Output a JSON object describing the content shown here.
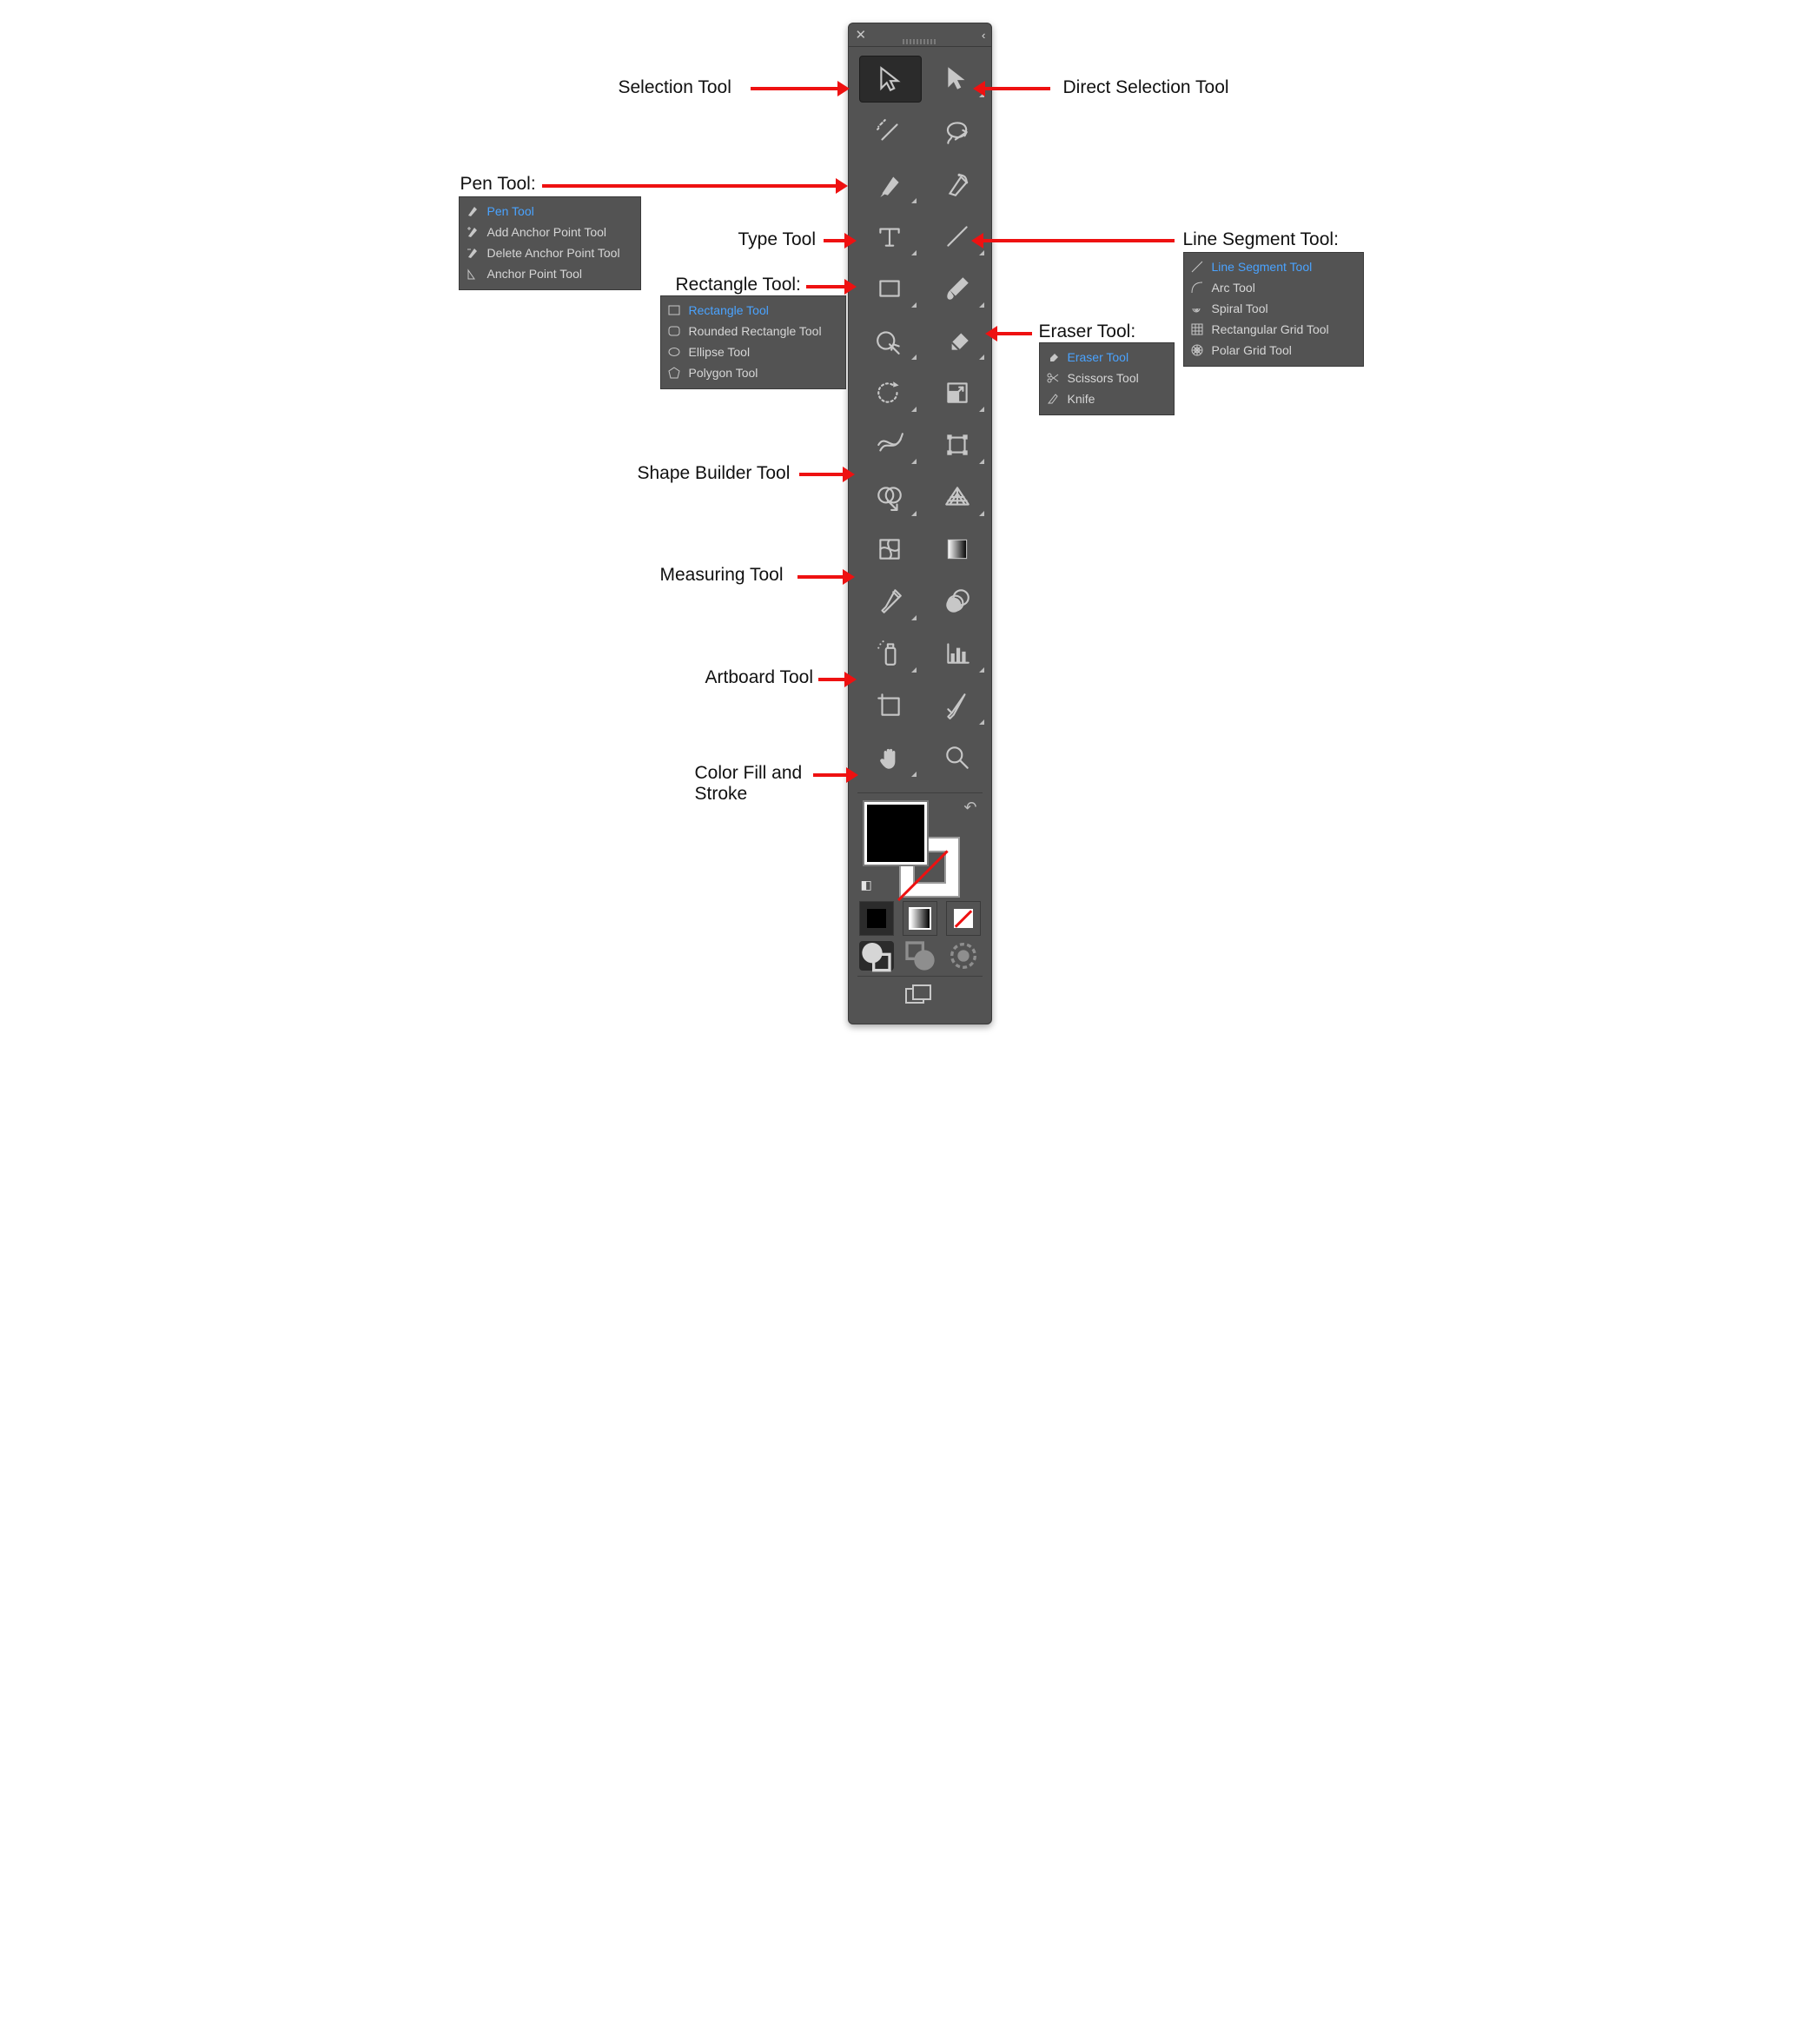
{
  "colors": {
    "panel": "#535353",
    "arrow": "#e11",
    "active": "#4aa3ff",
    "icon": "#c7c7c7"
  },
  "panel": {
    "tools": [
      {
        "name": "selection-tool",
        "fly": false,
        "selected": true
      },
      {
        "name": "direct-selection-tool",
        "fly": true
      },
      {
        "name": "magic-wand-tool",
        "fly": false
      },
      {
        "name": "lasso-tool",
        "fly": false
      },
      {
        "name": "pen-tool",
        "fly": true
      },
      {
        "name": "curvature-tool",
        "fly": false
      },
      {
        "name": "type-tool",
        "fly": true
      },
      {
        "name": "line-segment-tool",
        "fly": true
      },
      {
        "name": "rectangle-tool",
        "fly": true
      },
      {
        "name": "paintbrush-tool",
        "fly": true
      },
      {
        "name": "shaper-tool",
        "fly": true
      },
      {
        "name": "eraser-tool",
        "fly": true
      },
      {
        "name": "rotate-tool",
        "fly": true
      },
      {
        "name": "scale-tool",
        "fly": true
      },
      {
        "name": "width-tool",
        "fly": true
      },
      {
        "name": "free-transform-tool",
        "fly": true
      },
      {
        "name": "shape-builder-tool",
        "fly": true
      },
      {
        "name": "perspective-grid-tool",
        "fly": true
      },
      {
        "name": "mesh-tool",
        "fly": false
      },
      {
        "name": "gradient-tool",
        "fly": false
      },
      {
        "name": "eyedropper-tool",
        "fly": true
      },
      {
        "name": "blend-tool",
        "fly": false
      },
      {
        "name": "symbol-sprayer-tool",
        "fly": true
      },
      {
        "name": "column-graph-tool",
        "fly": true
      },
      {
        "name": "artboard-tool",
        "fly": false
      },
      {
        "name": "slice-tool",
        "fly": true
      },
      {
        "name": "hand-tool",
        "fly": true
      },
      {
        "name": "zoom-tool",
        "fly": false
      }
    ]
  },
  "labels": {
    "selection": "Selection Tool",
    "direct": "Direct Selection Tool",
    "pen": "Pen Tool:",
    "type": "Type Tool",
    "rect": "Rectangle Tool:",
    "line": "Line Segment Tool:",
    "eraser": "Eraser Tool:",
    "shape": "Shape Builder Tool",
    "measure": "Measuring Tool",
    "artboard": "Artboard Tool",
    "fill": "Color Fill and\nStroke"
  },
  "flyouts": {
    "pen": [
      {
        "label": "Pen Tool",
        "active": true
      },
      {
        "label": "Add Anchor Point Tool"
      },
      {
        "label": "Delete Anchor Point Tool"
      },
      {
        "label": "Anchor Point Tool"
      }
    ],
    "rect": [
      {
        "label": "Rectangle Tool",
        "active": true
      },
      {
        "label": "Rounded Rectangle Tool"
      },
      {
        "label": "Ellipse Tool"
      },
      {
        "label": "Polygon Tool"
      }
    ],
    "line": [
      {
        "label": "Line Segment Tool",
        "active": true
      },
      {
        "label": "Arc Tool"
      },
      {
        "label": "Spiral Tool"
      },
      {
        "label": "Rectangular Grid Tool"
      },
      {
        "label": "Polar Grid Tool"
      }
    ],
    "eraser": [
      {
        "label": "Eraser Tool",
        "active": true
      },
      {
        "label": "Scissors Tool"
      },
      {
        "label": "Knife"
      }
    ]
  }
}
